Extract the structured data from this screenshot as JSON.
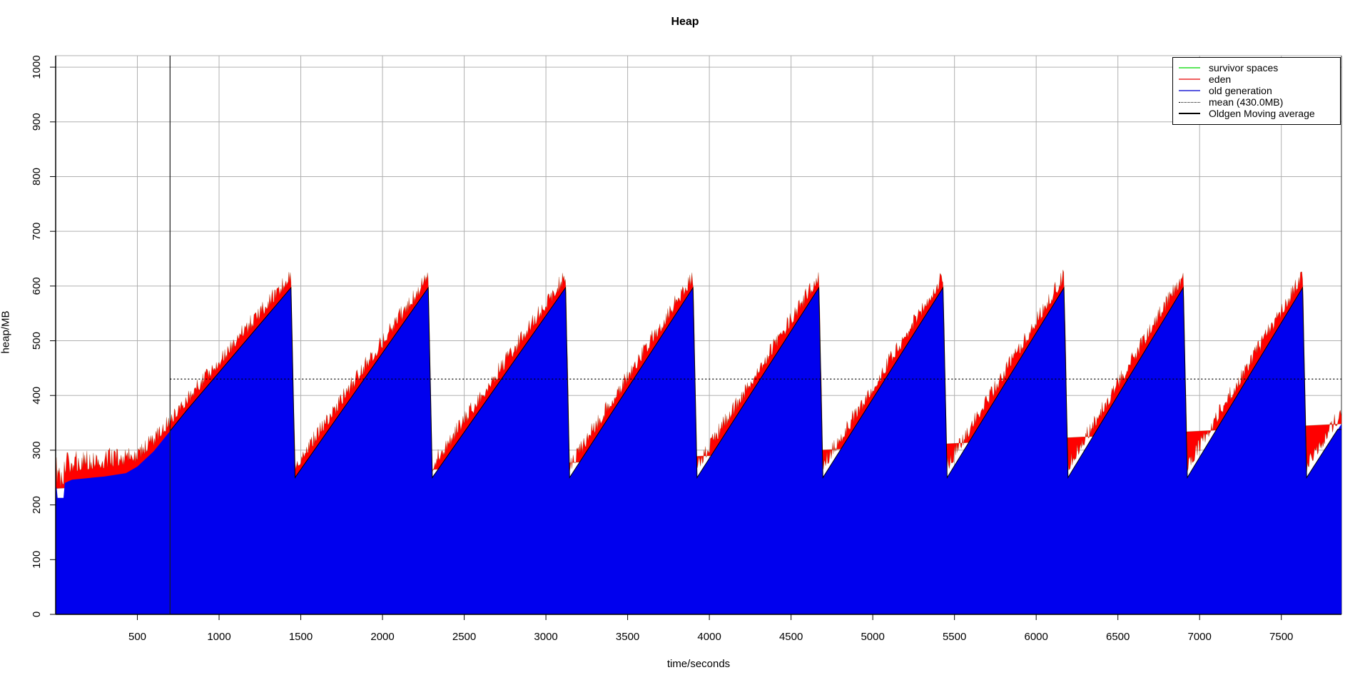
{
  "chart_data": {
    "type": "area",
    "title": "Heap",
    "xlabel": "time/seconds",
    "ylabel": "heap/MB",
    "xlim": [
      0,
      7868
    ],
    "ylim": [
      0,
      1021
    ],
    "x_ticks": [
      500,
      1000,
      1500,
      2000,
      2500,
      3000,
      3500,
      4000,
      4500,
      5000,
      5500,
      6000,
      6500,
      7000,
      7500
    ],
    "y_ticks": [
      0,
      100,
      200,
      300,
      400,
      500,
      600,
      700,
      800,
      900,
      1000
    ],
    "grid": true,
    "legend_position": "top-right",
    "peak_times_seconds": [
      1440,
      2280,
      3120,
      3900,
      4670,
      5430,
      6170,
      6900,
      7630
    ],
    "peak_total_mb": 620,
    "peak_oldgen_mb": 597,
    "valley_mb": 250,
    "series": [
      {
        "name": "old generation",
        "fill_color": "#0000ee",
        "points": [
          [
            0,
            230
          ],
          [
            6,
            232
          ],
          [
            12,
            213
          ],
          [
            48,
            213
          ],
          [
            56,
            240
          ],
          [
            100,
            246
          ],
          [
            300,
            252
          ],
          [
            430,
            258
          ],
          [
            500,
            270
          ],
          [
            600,
            298
          ],
          [
            700,
            335
          ],
          [
            800,
            372
          ],
          [
            1440,
            597
          ],
          [
            1465,
            250
          ],
          [
            2280,
            597
          ],
          [
            2305,
            250
          ],
          [
            3120,
            597
          ],
          [
            3145,
            250
          ],
          [
            3900,
            597
          ],
          [
            3925,
            250
          ],
          [
            4670,
            597
          ],
          [
            4695,
            250
          ],
          [
            5430,
            597
          ],
          [
            5455,
            250
          ],
          [
            6170,
            597
          ],
          [
            6195,
            250
          ],
          [
            6900,
            597
          ],
          [
            6925,
            250
          ],
          [
            7630,
            597
          ],
          [
            7655,
            250
          ],
          [
            7868,
            348
          ]
        ]
      },
      {
        "name": "eden",
        "fill_color": "#ff0000",
        "edge_color": "rgba(140,60,0,0.45)",
        "description": "spiky band stacked on old generation top",
        "band": {
          "min_mb": 6,
          "early_until_s": 460,
          "early_spike_mb": 40,
          "spike_mb": 27,
          "step_s": 4.35
        }
      },
      {
        "name": "survivor spaces",
        "fill_color": "#40e840",
        "description": "not visibly above zero in plot"
      }
    ],
    "mean_line": {
      "label": "mean (430.0MB)",
      "value_mb": 430,
      "x_start": 700,
      "color": "#000000",
      "style": "dotted"
    },
    "marker_line": {
      "x": 700,
      "color": "#1a1a1a"
    },
    "moving_average": {
      "name": "Oldgen Moving average",
      "color": "#000000",
      "x_start": 700,
      "end_step": [
        [
          7845,
          338
        ],
        [
          7868,
          338
        ]
      ]
    },
    "colors": {
      "grid": "#b0b0b0",
      "axis": "#000000",
      "plot_top_border": "#b0b0b0",
      "plot_right_border": "#333333"
    },
    "legend": {
      "items": [
        {
          "label": "survivor spaces",
          "color": "#5ce65c",
          "style": "solid"
        },
        {
          "label": "eden",
          "color": "#f06060",
          "style": "solid"
        },
        {
          "label": "old generation",
          "color": "#5858e0",
          "style": "solid"
        },
        {
          "label": "mean (430.0MB)",
          "color": "#000000",
          "style": "dotted"
        },
        {
          "label": "Oldgen Moving average",
          "color": "#000000",
          "style": "solid"
        }
      ]
    }
  }
}
